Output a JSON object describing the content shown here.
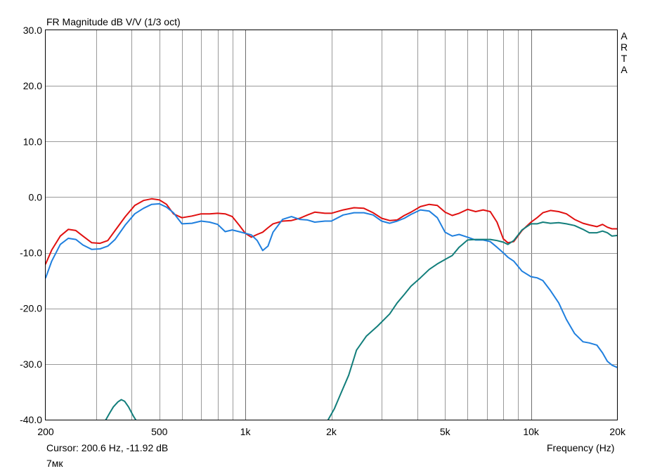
{
  "chart_data": {
    "type": "line",
    "title": "FR Magnitude dB V/V (1/3 oct)",
    "watermark": [
      "A",
      "R",
      "T",
      "A"
    ],
    "xlabel": "Frequency (Hz)",
    "ylabel": "",
    "x_scale": "log",
    "xlim": [
      200,
      20000
    ],
    "ylim": [
      -40,
      30
    ],
    "x_ticks": [
      {
        "value": 200,
        "label": "200"
      },
      {
        "value": 500,
        "label": "500"
      },
      {
        "value": 1000,
        "label": "1k"
      },
      {
        "value": 2000,
        "label": "2k"
      },
      {
        "value": 5000,
        "label": "5k"
      },
      {
        "value": 10000,
        "label": "10k"
      },
      {
        "value": 20000,
        "label": "20k"
      }
    ],
    "y_ticks": [
      {
        "value": 30,
        "label": "30.0"
      },
      {
        "value": 20,
        "label": "20.0"
      },
      {
        "value": 10,
        "label": "10.0"
      },
      {
        "value": 0,
        "label": "0.0"
      },
      {
        "value": -10,
        "label": "-10.0"
      },
      {
        "value": -20,
        "label": "-20.0"
      },
      {
        "value": -30,
        "label": "-30.0"
      },
      {
        "value": -40,
        "label": "-40.0"
      }
    ],
    "grid": true,
    "cursor_text": "Cursor: 200.6 Hz, -11.92 dB",
    "note": "7мк",
    "series": [
      {
        "color": "#e01010",
        "points": [
          [
            200,
            -12
          ],
          [
            210,
            -9.5
          ],
          [
            225,
            -7
          ],
          [
            240,
            -5.8
          ],
          [
            255,
            -6
          ],
          [
            270,
            -7
          ],
          [
            290,
            -8.2
          ],
          [
            310,
            -8.3
          ],
          [
            330,
            -7.8
          ],
          [
            350,
            -6
          ],
          [
            380,
            -3.5
          ],
          [
            410,
            -1.5
          ],
          [
            440,
            -0.6
          ],
          [
            470,
            -0.3
          ],
          [
            500,
            -0.5
          ],
          [
            530,
            -1.3
          ],
          [
            560,
            -3
          ],
          [
            600,
            -3.7
          ],
          [
            650,
            -3.4
          ],
          [
            700,
            -3
          ],
          [
            750,
            -3
          ],
          [
            800,
            -2.9
          ],
          [
            850,
            -3
          ],
          [
            900,
            -3.5
          ],
          [
            950,
            -5
          ],
          [
            1000,
            -6.5
          ],
          [
            1050,
            -7.2
          ],
          [
            1100,
            -6.7
          ],
          [
            1150,
            -6.3
          ],
          [
            1200,
            -5.5
          ],
          [
            1250,
            -4.8
          ],
          [
            1350,
            -4.3
          ],
          [
            1450,
            -4.2
          ],
          [
            1550,
            -3.8
          ],
          [
            1650,
            -3.2
          ],
          [
            1750,
            -2.7
          ],
          [
            1900,
            -2.9
          ],
          [
            2000,
            -2.9
          ],
          [
            2200,
            -2.3
          ],
          [
            2400,
            -1.9
          ],
          [
            2600,
            -2
          ],
          [
            2800,
            -2.8
          ],
          [
            3000,
            -3.8
          ],
          [
            3200,
            -4.2
          ],
          [
            3400,
            -4.1
          ],
          [
            3600,
            -3.3
          ],
          [
            3800,
            -2.7
          ],
          [
            4100,
            -1.7
          ],
          [
            4400,
            -1.3
          ],
          [
            4700,
            -1.5
          ],
          [
            5000,
            -2.7
          ],
          [
            5300,
            -3.3
          ],
          [
            5600,
            -2.9
          ],
          [
            6000,
            -2.2
          ],
          [
            6400,
            -2.6
          ],
          [
            6800,
            -2.3
          ],
          [
            7200,
            -2.6
          ],
          [
            7600,
            -4.5
          ],
          [
            8000,
            -7.5
          ],
          [
            8300,
            -8.2
          ],
          [
            8700,
            -8
          ],
          [
            9300,
            -6
          ],
          [
            10000,
            -4.5
          ],
          [
            10500,
            -3.7
          ],
          [
            11000,
            -2.8
          ],
          [
            11700,
            -2.4
          ],
          [
            12500,
            -2.6
          ],
          [
            13300,
            -3
          ],
          [
            14200,
            -4
          ],
          [
            15200,
            -4.7
          ],
          [
            16000,
            -5
          ],
          [
            17000,
            -5.3
          ],
          [
            17800,
            -4.9
          ],
          [
            18500,
            -5.4
          ],
          [
            19200,
            -5.7
          ],
          [
            20000,
            -5.7
          ]
        ]
      },
      {
        "color": "#1f7fde",
        "points": [
          [
            200,
            -14.5
          ],
          [
            210,
            -11.5
          ],
          [
            225,
            -8.5
          ],
          [
            240,
            -7.4
          ],
          [
            255,
            -7.6
          ],
          [
            270,
            -8.6
          ],
          [
            290,
            -9.4
          ],
          [
            310,
            -9.3
          ],
          [
            330,
            -8.8
          ],
          [
            350,
            -7.6
          ],
          [
            380,
            -5
          ],
          [
            410,
            -3
          ],
          [
            440,
            -2
          ],
          [
            470,
            -1.3
          ],
          [
            500,
            -1.2
          ],
          [
            530,
            -1.8
          ],
          [
            560,
            -2.8
          ],
          [
            600,
            -4.8
          ],
          [
            650,
            -4.7
          ],
          [
            700,
            -4.3
          ],
          [
            750,
            -4.5
          ],
          [
            800,
            -4.9
          ],
          [
            850,
            -6.2
          ],
          [
            900,
            -5.9
          ],
          [
            950,
            -6.2
          ],
          [
            1000,
            -6.5
          ],
          [
            1050,
            -6.8
          ],
          [
            1100,
            -7.8
          ],
          [
            1150,
            -9.6
          ],
          [
            1200,
            -8.8
          ],
          [
            1250,
            -6.3
          ],
          [
            1350,
            -4
          ],
          [
            1450,
            -3.5
          ],
          [
            1550,
            -4
          ],
          [
            1650,
            -4.1
          ],
          [
            1750,
            -4.5
          ],
          [
            1900,
            -4.3
          ],
          [
            2000,
            -4.3
          ],
          [
            2200,
            -3.2
          ],
          [
            2400,
            -2.8
          ],
          [
            2600,
            -2.8
          ],
          [
            2800,
            -3.2
          ],
          [
            3000,
            -4.3
          ],
          [
            3200,
            -4.7
          ],
          [
            3400,
            -4.3
          ],
          [
            3600,
            -3.8
          ],
          [
            3800,
            -3.1
          ],
          [
            4100,
            -2.3
          ],
          [
            4400,
            -2.5
          ],
          [
            4700,
            -3.7
          ],
          [
            5000,
            -6.3
          ],
          [
            5300,
            -7
          ],
          [
            5600,
            -6.7
          ],
          [
            6000,
            -7.2
          ],
          [
            6400,
            -7.7
          ],
          [
            6800,
            -7.7
          ],
          [
            7200,
            -8
          ],
          [
            7600,
            -9
          ],
          [
            8000,
            -10
          ],
          [
            8300,
            -10.8
          ],
          [
            8700,
            -11.5
          ],
          [
            9300,
            -13.3
          ],
          [
            10000,
            -14.3
          ],
          [
            10500,
            -14.5
          ],
          [
            11000,
            -15
          ],
          [
            11700,
            -16.8
          ],
          [
            12500,
            -19
          ],
          [
            13300,
            -22
          ],
          [
            14200,
            -24.5
          ],
          [
            15200,
            -26
          ],
          [
            16000,
            -26.2
          ],
          [
            17000,
            -26.6
          ],
          [
            17800,
            -28
          ],
          [
            18500,
            -29.5
          ],
          [
            19200,
            -30.2
          ],
          [
            20000,
            -30.6
          ]
        ]
      },
      {
        "color": "#127e7b",
        "points": [
          [
            325,
            -40
          ],
          [
            335,
            -38.8
          ],
          [
            345,
            -37.7
          ],
          [
            358,
            -36.8
          ],
          [
            368,
            -36.4
          ],
          [
            378,
            -36.7
          ],
          [
            390,
            -37.7
          ],
          [
            405,
            -39.3
          ],
          [
            413,
            -40
          ]
        ]
      },
      {
        "color": "#127e7b",
        "points": [
          [
            1950,
            -40
          ],
          [
            2050,
            -38
          ],
          [
            2150,
            -35.5
          ],
          [
            2300,
            -32
          ],
          [
            2450,
            -27.5
          ],
          [
            2650,
            -25
          ],
          [
            2900,
            -23.2
          ],
          [
            3200,
            -21
          ],
          [
            3400,
            -19
          ],
          [
            3600,
            -17.5
          ],
          [
            3800,
            -16
          ],
          [
            4100,
            -14.5
          ],
          [
            4400,
            -13
          ],
          [
            4700,
            -12
          ],
          [
            5000,
            -11.2
          ],
          [
            5300,
            -10.5
          ],
          [
            5600,
            -9
          ],
          [
            6000,
            -7.7
          ],
          [
            6400,
            -7.6
          ],
          [
            6800,
            -7.6
          ],
          [
            7200,
            -7.6
          ],
          [
            7600,
            -7.8
          ],
          [
            8000,
            -8.1
          ],
          [
            8300,
            -8.5
          ],
          [
            8700,
            -7.8
          ],
          [
            9300,
            -5.9
          ],
          [
            10000,
            -4.8
          ],
          [
            10500,
            -4.8
          ],
          [
            11000,
            -4.5
          ],
          [
            11700,
            -4.7
          ],
          [
            12500,
            -4.6
          ],
          [
            13300,
            -4.8
          ],
          [
            14200,
            -5.1
          ],
          [
            15200,
            -5.8
          ],
          [
            16000,
            -6.4
          ],
          [
            17000,
            -6.4
          ],
          [
            17800,
            -6.1
          ],
          [
            18500,
            -6.4
          ],
          [
            19200,
            -7
          ],
          [
            20000,
            -6.9
          ]
        ]
      }
    ]
  }
}
